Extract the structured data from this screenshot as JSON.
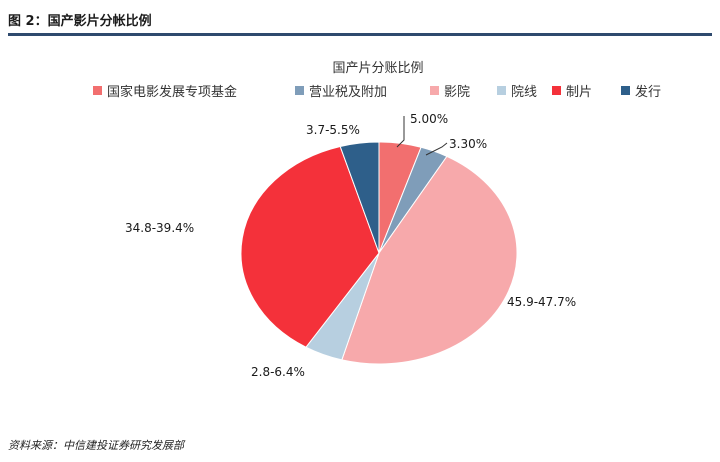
{
  "figure": {
    "title": "图 2：国产影片分帐比例",
    "source": "资料来源：中信建投证券研究发展部"
  },
  "chart_data": {
    "type": "pie",
    "title": "国产片分账比例",
    "legend_position": "top",
    "slices": [
      {
        "name": "国家电影发展专项基金",
        "value": 5.0,
        "label": "5.00%",
        "color": "#f26f6f"
      },
      {
        "name": "营业税及附加",
        "value": 3.3,
        "label": "3.30%",
        "color": "#7f9db9"
      },
      {
        "name": "影院",
        "value": 46.8,
        "label": "45.9-47.7%",
        "color": "#f7a9ab"
      },
      {
        "name": "院线",
        "value": 4.6,
        "label": "2.8-6.4%",
        "color": "#b7cfe0"
      },
      {
        "name": "制片",
        "value": 37.1,
        "label": "34.8-39.4%",
        "color": "#f4313a"
      },
      {
        "name": "发行",
        "value": 4.6,
        "label": "3.7-5.5%",
        "color": "#2e5f8a"
      }
    ]
  }
}
